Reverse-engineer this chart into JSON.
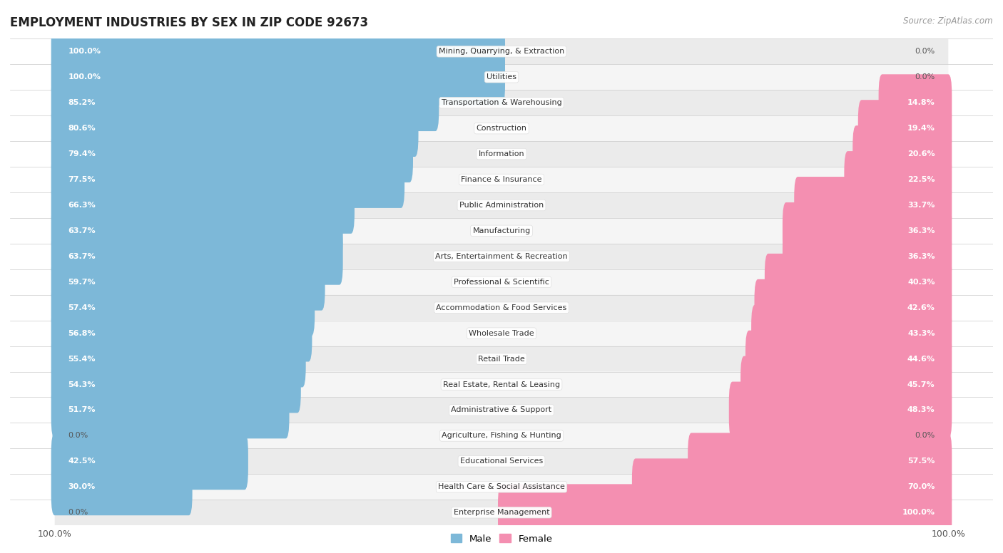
{
  "title": "EMPLOYMENT INDUSTRIES BY SEX IN ZIP CODE 92673",
  "source": "Source: ZipAtlas.com",
  "male_color": "#7db8d8",
  "female_color": "#f48fb1",
  "male_color_dark": "#5a9fc2",
  "female_color_dark": "#e87aaa",
  "bg_color_even": "#ebebeb",
  "bg_color_odd": "#f5f5f5",
  "categories": [
    "Mining, Quarrying, & Extraction",
    "Utilities",
    "Transportation & Warehousing",
    "Construction",
    "Information",
    "Finance & Insurance",
    "Public Administration",
    "Manufacturing",
    "Arts, Entertainment & Recreation",
    "Professional & Scientific",
    "Accommodation & Food Services",
    "Wholesale Trade",
    "Retail Trade",
    "Real Estate, Rental & Leasing",
    "Administrative & Support",
    "Agriculture, Fishing & Hunting",
    "Educational Services",
    "Health Care & Social Assistance",
    "Enterprise Management"
  ],
  "male_pct": [
    100.0,
    100.0,
    85.2,
    80.6,
    79.4,
    77.5,
    66.3,
    63.7,
    63.7,
    59.7,
    57.4,
    56.8,
    55.4,
    54.3,
    51.7,
    0.0,
    42.5,
    30.0,
    0.0
  ],
  "female_pct": [
    0.0,
    0.0,
    14.8,
    19.4,
    20.6,
    22.5,
    33.7,
    36.3,
    36.3,
    40.3,
    42.6,
    43.3,
    44.6,
    45.7,
    48.3,
    0.0,
    57.5,
    70.0,
    100.0
  ],
  "xlim_left": -100,
  "xlim_right": 100
}
